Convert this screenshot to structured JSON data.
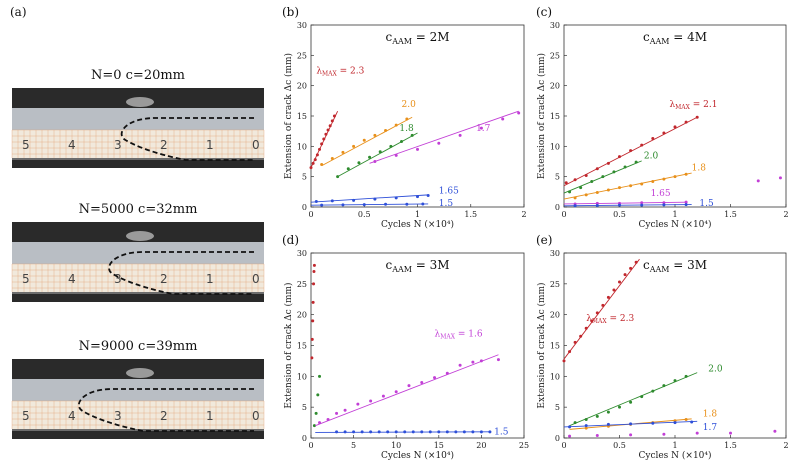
{
  "photos": {
    "panel_label": "(a)",
    "items": [
      {
        "caption": "N=0     c=20mm",
        "ruler": [
          "5",
          "4",
          "3",
          "2",
          "1",
          "0"
        ],
        "crack_fraction": 0.45
      },
      {
        "caption": "N=5000   c=32mm",
        "ruler": [
          "5",
          "4",
          "3",
          "2",
          "1",
          "0"
        ],
        "crack_fraction": 0.4
      },
      {
        "caption": "N=9000   c=39mm",
        "ruler": [
          "5",
          "4",
          "3",
          "2",
          "1",
          "0"
        ],
        "crack_fraction": 0.28
      }
    ]
  },
  "colors": {
    "red": "#c1272d",
    "orange": "#e8901a",
    "green": "#2e8b2e",
    "magenta": "#c23fd6",
    "blue": "#2e4fd8",
    "dashed": "#111111",
    "photo_dark": "#2a2a2a",
    "photo_strip": "#f1e9dc",
    "grid_orange": "#e39a6c"
  },
  "chart_data": [
    {
      "id": "b",
      "panel_label": "(b)",
      "type": "scatter",
      "title": "cAAM = 2M",
      "title_main": "c",
      "title_sub": "AAM",
      "title_rest": " = 2M",
      "xlabel": "Cycles N (×10⁴)",
      "ylabel": "Extension of crack Δc (mm)",
      "xlim": [
        0,
        2
      ],
      "ylim": [
        0,
        30
      ],
      "xticks": [
        0,
        0.5,
        1,
        1.5,
        2
      ],
      "xtick_labels": [
        "0",
        "0.5",
        "1",
        "1.5",
        "2"
      ],
      "yticks": [
        0,
        5,
        10,
        15,
        20,
        25,
        30
      ],
      "series": [
        {
          "name": "λMAX = 2.3",
          "color": "red",
          "x": [
            0.0,
            0.02,
            0.04,
            0.06,
            0.08,
            0.1,
            0.12,
            0.14,
            0.16,
            0.18,
            0.2,
            0.22
          ],
          "y": [
            6.5,
            7.2,
            7.8,
            8.6,
            9.5,
            10.4,
            11.2,
            12.0,
            12.7,
            13.4,
            14.2,
            15.0
          ],
          "fit": [
            [
              0,
              6.5
            ],
            [
              0.25,
              15.8
            ]
          ]
        },
        {
          "name": "2.0",
          "color": "orange",
          "x": [
            0.1,
            0.2,
            0.3,
            0.4,
            0.5,
            0.6,
            0.7,
            0.8,
            0.9
          ],
          "y": [
            7.0,
            8.0,
            9.0,
            10.0,
            11.0,
            11.8,
            12.6,
            13.5,
            14.5
          ],
          "fit": [
            [
              0.1,
              6.8
            ],
            [
              0.95,
              14.8
            ]
          ]
        },
        {
          "name": "1.8",
          "color": "green",
          "x": [
            0.25,
            0.35,
            0.45,
            0.55,
            0.65,
            0.75,
            0.85,
            0.95
          ],
          "y": [
            5.0,
            6.3,
            7.3,
            8.2,
            9.1,
            10.0,
            10.8,
            11.8
          ],
          "fit": [
            [
              0.25,
              5.0
            ],
            [
              1.0,
              12.2
            ]
          ]
        },
        {
          "name": "1.7",
          "color": "magenta",
          "x": [
            0.6,
            0.8,
            1.0,
            1.2,
            1.4,
            1.6,
            1.8,
            1.95
          ],
          "y": [
            7.5,
            8.5,
            9.5,
            10.5,
            11.8,
            13.0,
            14.5,
            15.5
          ],
          "fit": [
            [
              0.55,
              7.2
            ],
            [
              1.95,
              15.8
            ]
          ]
        },
        {
          "name": "1.65",
          "color": "blue",
          "x": [
            0.05,
            0.2,
            0.4,
            0.6,
            0.8,
            1.0,
            1.1
          ],
          "y": [
            0.9,
            1.0,
            1.1,
            1.3,
            1.5,
            1.7,
            1.9
          ],
          "fit": [
            [
              0.0,
              0.8
            ],
            [
              1.1,
              2.0
            ]
          ]
        },
        {
          "name": "1.5",
          "color": "blue",
          "x": [
            0.1,
            0.3,
            0.5,
            0.7,
            0.9,
            1.05
          ],
          "y": [
            0.3,
            0.35,
            0.4,
            0.45,
            0.45,
            0.5
          ],
          "fit": [
            [
              0.0,
              0.3
            ],
            [
              1.1,
              0.5
            ]
          ]
        }
      ]
    },
    {
      "id": "c",
      "panel_label": "(c)",
      "type": "scatter",
      "title": "cAAM = 4M",
      "title_main": "c",
      "title_sub": "AAM",
      "title_rest": " = 4M",
      "xlabel": "Cycles N (×10⁴)",
      "ylabel": "Extension of crack Δc (mm)",
      "xlim": [
        0,
        2
      ],
      "ylim": [
        0,
        30
      ],
      "xticks": [
        0,
        0.5,
        1,
        1.5,
        2
      ],
      "xtick_labels": [
        "0",
        "0.5",
        "1",
        "1.5",
        "2"
      ],
      "yticks": [
        0,
        5,
        10,
        15,
        20,
        25,
        30
      ],
      "series": [
        {
          "name": "λMAX = 2.1",
          "color": "red",
          "x": [
            0.02,
            0.1,
            0.2,
            0.3,
            0.4,
            0.5,
            0.6,
            0.7,
            0.8,
            0.9,
            1.0,
            1.1,
            1.2
          ],
          "y": [
            4.0,
            4.5,
            5.2,
            6.3,
            7.2,
            8.3,
            9.3,
            10.2,
            11.3,
            12.2,
            13.2,
            14.0,
            14.8
          ],
          "fit": [
            [
              0,
              3.5
            ],
            [
              1.2,
              14.8
            ]
          ]
        },
        {
          "name": "2.0",
          "color": "green",
          "x": [
            0.05,
            0.15,
            0.25,
            0.35,
            0.45,
            0.55,
            0.65
          ],
          "y": [
            2.5,
            3.2,
            4.2,
            5.0,
            5.8,
            6.6,
            7.4
          ],
          "fit": [
            [
              0.0,
              2.3
            ],
            [
              0.7,
              7.6
            ]
          ]
        },
        {
          "name": "1.8",
          "color": "orange",
          "x": [
            0.1,
            0.2,
            0.3,
            0.4,
            0.5,
            0.6,
            0.7,
            0.8,
            0.9,
            1.0,
            1.1
          ],
          "y": [
            1.5,
            2.0,
            2.4,
            2.8,
            3.2,
            3.5,
            3.8,
            4.2,
            4.6,
            5.0,
            5.4
          ],
          "fit": [
            [
              0.0,
              1.3
            ],
            [
              1.15,
              5.6
            ]
          ]
        },
        {
          "name": "1.65",
          "color": "magenta",
          "x": [
            0.1,
            0.3,
            0.5,
            0.7,
            0.9,
            1.1,
            1.75,
            1.95
          ],
          "y": [
            0.5,
            0.6,
            0.6,
            0.7,
            0.7,
            0.8,
            4.3,
            4.8
          ],
          "fit": [
            [
              0.0,
              0.5
            ],
            [
              1.1,
              0.8
            ]
          ]
        },
        {
          "name": "1.5",
          "color": "blue",
          "x": [
            0.1,
            0.3,
            0.5,
            0.7,
            0.9,
            1.1
          ],
          "y": [
            0.2,
            0.25,
            0.3,
            0.3,
            0.35,
            0.4
          ],
          "fit": [
            [
              0.0,
              0.2
            ],
            [
              1.15,
              0.4
            ]
          ]
        }
      ]
    },
    {
      "id": "d",
      "panel_label": "(d)",
      "type": "scatter",
      "title": "cAAM = 3M",
      "title_main": "c",
      "title_sub": "AAM",
      "title_rest": " = 3M",
      "xlabel": "Cycles N (×10⁴)",
      "ylabel": "Extension of crack Δc (mm)",
      "xlim": [
        0,
        25
      ],
      "ylim": [
        0,
        30
      ],
      "xticks": [
        0,
        5,
        10,
        15,
        20,
        25
      ],
      "xtick_labels": [
        "0",
        "5",
        "10",
        "15",
        "20",
        "25"
      ],
      "yticks": [
        0,
        5,
        10,
        15,
        20,
        25,
        30
      ],
      "series": [
        {
          "name": "",
          "color": "red",
          "x": [
            0.1,
            0.15,
            0.2,
            0.25,
            0.3,
            0.35,
            0.4
          ],
          "y": [
            13.0,
            16.0,
            19.0,
            22.0,
            25.0,
            27.0,
            28.0
          ],
          "fit": []
        },
        {
          "name": "",
          "color": "green",
          "x": [
            0.4,
            0.6,
            0.8,
            1.0
          ],
          "y": [
            2.0,
            4.0,
            7.0,
            10.0
          ],
          "fit": []
        },
        {
          "name": "λMAX = 1.6",
          "color": "magenta",
          "x": [
            1.0,
            2.0,
            3.0,
            4.0,
            5.5,
            7.0,
            8.5,
            10.0,
            11.5,
            13.0,
            14.5,
            16.0,
            17.5,
            19.0,
            20.0,
            22.0
          ],
          "y": [
            2.5,
            3.0,
            4.0,
            4.5,
            5.5,
            6.0,
            6.8,
            7.5,
            8.5,
            9.0,
            9.8,
            10.5,
            11.8,
            12.3,
            12.5,
            12.7
          ],
          "fit": [
            [
              0.5,
              2.0
            ],
            [
              22,
              13.5
            ]
          ]
        },
        {
          "name": "1.5",
          "color": "blue",
          "x": [
            3,
            4,
            5,
            6,
            7,
            8,
            9,
            10,
            11,
            12,
            13,
            14,
            15,
            16,
            17,
            18,
            19,
            20,
            21
          ],
          "y": [
            1.0,
            1.0,
            1.0,
            1.0,
            1.0,
            1.0,
            1.0,
            1.0,
            1.0,
            1.0,
            1.0,
            1.0,
            1.0,
            1.0,
            1.0,
            1.0,
            1.0,
            1.0,
            1.0
          ],
          "fit": [
            [
              0.5,
              0.9
            ],
            [
              21,
              1.0
            ]
          ]
        }
      ]
    },
    {
      "id": "e",
      "panel_label": "(e)",
      "type": "scatter",
      "title": "cAAM = 3M",
      "title_main": "c",
      "title_sub": "AAM",
      "title_rest": " = 3M",
      "xlabel": "Cycles N (×10⁴)",
      "ylabel": "Extension of crack Δc (mm)",
      "xlim": [
        0,
        2
      ],
      "ylim": [
        0,
        30
      ],
      "xticks": [
        0,
        0.5,
        1,
        1.5,
        2
      ],
      "xtick_labels": [
        "0",
        "0.5",
        "1",
        "1.5",
        "2"
      ],
      "yticks": [
        0,
        5,
        10,
        15,
        20,
        25,
        30
      ],
      "series": [
        {
          "name": "λMAX = 2.3",
          "color": "red",
          "x": [
            0.0,
            0.05,
            0.1,
            0.15,
            0.2,
            0.25,
            0.3,
            0.35,
            0.4,
            0.45,
            0.5,
            0.55,
            0.6,
            0.65
          ],
          "y": [
            12.5,
            14.0,
            15.5,
            16.5,
            17.8,
            19.0,
            20.3,
            21.5,
            22.8,
            24.0,
            25.3,
            26.5,
            27.5,
            28.5
          ],
          "fit": [
            [
              0,
              12.8
            ],
            [
              0.68,
              29.0
            ]
          ]
        },
        {
          "name": "2.0",
          "color": "green",
          "x": [
            0.1,
            0.2,
            0.3,
            0.4,
            0.5,
            0.6,
            0.7,
            0.8,
            0.9,
            1.0,
            1.1
          ],
          "y": [
            2.5,
            3.0,
            3.5,
            4.2,
            5.0,
            5.8,
            6.7,
            7.6,
            8.5,
            9.3,
            10.0
          ],
          "fit": [
            [
              0.05,
              2.0
            ],
            [
              1.2,
              10.6
            ]
          ]
        },
        {
          "name": "1.8",
          "color": "orange",
          "x": [
            0.2,
            0.4,
            0.6,
            0.8,
            1.0,
            1.1
          ],
          "y": [
            1.6,
            1.9,
            2.2,
            2.5,
            2.8,
            3.0
          ],
          "fit": [
            [
              0.05,
              1.4
            ],
            [
              1.15,
              3.1
            ]
          ]
        },
        {
          "name": "1.7",
          "color": "blue",
          "x": [
            0.05,
            0.2,
            0.4,
            0.6,
            0.8,
            1.0,
            1.15
          ],
          "y": [
            1.8,
            2.0,
            2.2,
            2.3,
            2.4,
            2.5,
            2.6
          ],
          "fit": [
            [
              0.0,
              1.8
            ],
            [
              1.2,
              2.7
            ]
          ]
        },
        {
          "name": "",
          "color": "magenta",
          "x": [
            0.05,
            0.3,
            0.6,
            0.9,
            1.2,
            1.5,
            1.9
          ],
          "y": [
            0.3,
            0.4,
            0.5,
            0.6,
            0.8,
            0.8,
            1.1
          ],
          "fit": []
        }
      ]
    }
  ]
}
